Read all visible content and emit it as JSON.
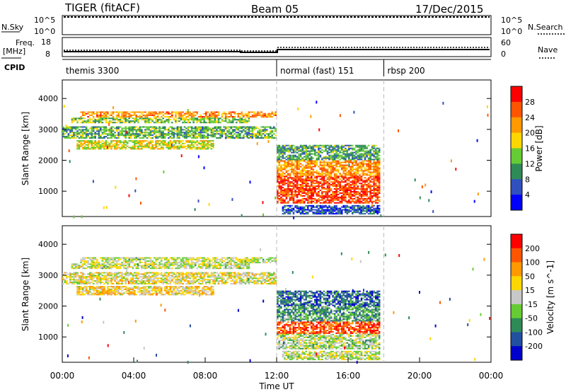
{
  "header": {
    "station": "TIGER (fitACF)",
    "beam": "Beam 05",
    "date": "17/Dec/2015"
  },
  "top_panel": {
    "left_label": "N.Sky",
    "left_ticks": [
      "10^5",
      "10^0"
    ],
    "right_ticks": [
      "10^5",
      "10^0"
    ],
    "right_label": "N.Search"
  },
  "freq_panel": {
    "left_label_1": "Freq.",
    "left_label_2": "[MHz]",
    "left_ticks": [
      "18",
      "8"
    ],
    "right_ticks": [
      "60",
      "0"
    ],
    "right_label": "Nave",
    "cpid_label": "CPID",
    "modes": [
      {
        "label": "themis 3300",
        "start_hour": 0
      },
      {
        "label": "normal (fast) 151",
        "start_hour": 12
      },
      {
        "label": "rbsp 200",
        "start_hour": 18
      }
    ]
  },
  "colors": {
    "power_scale": [
      "#0000ff",
      "#3050c0",
      "#2e8b57",
      "#66cc33",
      "#ffd700",
      "#ff9900",
      "#ff5500",
      "#ff0000"
    ],
    "velocity_scale": [
      "#0000cc",
      "#2050a0",
      "#2e8b57",
      "#66cc33",
      "#c8c8c8",
      "#ffd700",
      "#ff9900",
      "#ff5500",
      "#ff0000"
    ]
  },
  "chart_data": [
    {
      "type": "heatmap",
      "name": "power",
      "ylabel": "Slant Range [km]",
      "ylim": [
        180,
        4600
      ],
      "yticks": [
        1000,
        2000,
        3000,
        4000
      ],
      "xlim": [
        0,
        24
      ],
      "colorbar_label": "Power [dB]",
      "colorbar_ticks": [
        4,
        8,
        12,
        16,
        20,
        24,
        28
      ],
      "colorbar_range": [
        0,
        32
      ],
      "regions": [
        {
          "t0": 1.0,
          "t1": 12.0,
          "r0": 3380,
          "r1": 3580,
          "level": 0.72
        },
        {
          "t0": 0.5,
          "t1": 10.5,
          "r0": 3200,
          "r1": 3380,
          "level": 0.45
        },
        {
          "t0": 0.0,
          "t1": 12.0,
          "r0": 2700,
          "r1": 3100,
          "level": 0.38
        },
        {
          "t0": 0.8,
          "t1": 8.5,
          "r0": 2350,
          "r1": 2650,
          "level": 0.55
        },
        {
          "t0": 12.0,
          "t1": 17.8,
          "r0": 2000,
          "r1": 2500,
          "level": 0.35
        },
        {
          "t0": 12.0,
          "t1": 17.8,
          "r0": 1500,
          "r1": 2000,
          "level": 0.7
        },
        {
          "t0": 12.0,
          "t1": 17.8,
          "r0": 600,
          "r1": 1500,
          "level": 0.85
        },
        {
          "t0": 12.3,
          "t1": 17.8,
          "r0": 250,
          "r1": 550,
          "level": 0.2
        }
      ]
    },
    {
      "type": "heatmap",
      "name": "velocity",
      "ylabel": "Slant Range [km]",
      "ylim": [
        180,
        4600
      ],
      "yticks": [
        1000,
        2000,
        3000,
        4000
      ],
      "xlim": [
        0,
        24
      ],
      "xlabel": "Time UT",
      "xticks": [
        "00:00",
        "04:00",
        "08:00",
        "12:00",
        "16:00",
        "20:00",
        "00:00"
      ],
      "colorbar_label": "Velocity [m s^-1]",
      "colorbar_ticks": [
        200,
        100,
        50,
        15,
        -15,
        -50,
        -100,
        -200
      ],
      "regions": [
        {
          "t0": 1.0,
          "t1": 12.0,
          "r0": 3380,
          "r1": 3580,
          "level": 0.5
        },
        {
          "t0": 0.5,
          "t1": 10.5,
          "r0": 3200,
          "r1": 3380,
          "level": 0.5
        },
        {
          "t0": 0.0,
          "t1": 12.0,
          "r0": 2700,
          "r1": 3100,
          "level": 0.55
        },
        {
          "t0": 0.8,
          "t1": 8.5,
          "r0": 2350,
          "r1": 2650,
          "level": 0.6
        },
        {
          "t0": 12.0,
          "t1": 17.8,
          "r0": 2000,
          "r1": 2500,
          "level": 0.2
        },
        {
          "t0": 12.0,
          "t1": 17.8,
          "r0": 1500,
          "r1": 2000,
          "level": 0.3
        },
        {
          "t0": 12.0,
          "t1": 17.8,
          "r0": 1100,
          "r1": 1500,
          "level": 0.85
        },
        {
          "t0": 12.0,
          "t1": 17.8,
          "r0": 600,
          "r1": 1100,
          "level": 0.45
        },
        {
          "t0": 12.3,
          "t1": 17.8,
          "r0": 250,
          "r1": 550,
          "level": 0.5
        }
      ]
    }
  ]
}
